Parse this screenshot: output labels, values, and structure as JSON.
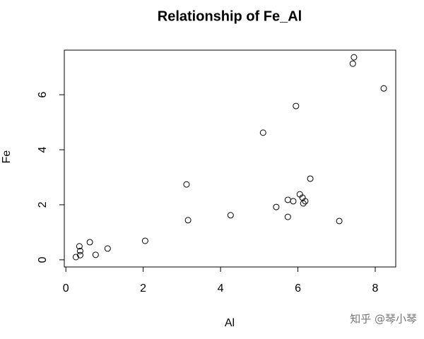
{
  "chart_data": {
    "type": "scatter",
    "title": "Relationship of Fe_Al",
    "x_label": "Al",
    "y_label": "Fe",
    "x": [
      0.26,
      0.35,
      0.37,
      0.37,
      0.62,
      0.77,
      1.08,
      2.05,
      3.12,
      3.16,
      4.26,
      5.1,
      5.44,
      5.74,
      5.74,
      5.88,
      5.95,
      6.05,
      6.12,
      6.14,
      6.19,
      6.32,
      7.07,
      7.42,
      7.45,
      8.22
    ],
    "series": [
      {
        "name": "Fe",
        "color": "#000000",
        "values": [
          0.1,
          0.49,
          0.32,
          0.17,
          0.64,
          0.18,
          0.41,
          0.69,
          2.74,
          1.44,
          1.62,
          4.62,
          1.92,
          2.18,
          1.56,
          2.13,
          5.59,
          2.38,
          2.26,
          2.05,
          2.13,
          2.95,
          1.41,
          7.13,
          7.36,
          6.23
        ]
      }
    ],
    "xlim": [
      -0.04,
      8.53
    ],
    "ylim": [
      -0.26,
      7.62
    ],
    "xticks": [
      0,
      2,
      4,
      6,
      8
    ],
    "yticks": [
      0,
      2,
      4,
      6
    ]
  },
  "watermark": "知乎 @琴小琴"
}
